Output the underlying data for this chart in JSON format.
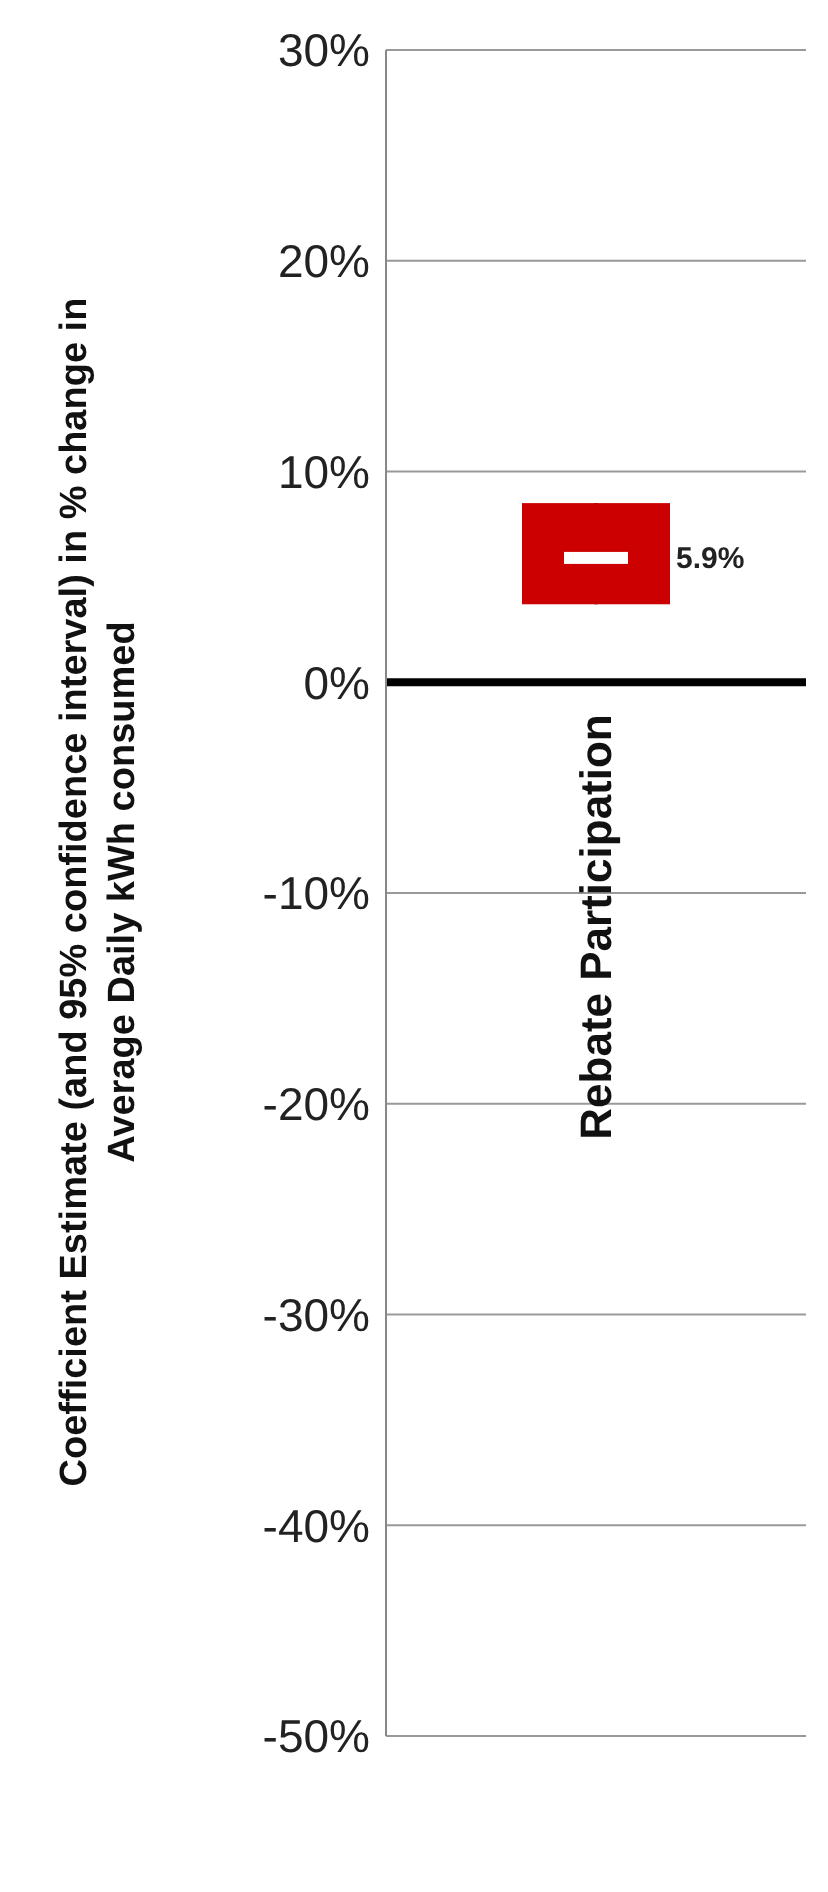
{
  "chart_data": {
    "type": "box",
    "categories": [
      "Rebate Participation"
    ],
    "boxes": [
      {
        "low": 3.7,
        "q1": 3.7,
        "median": 5.9,
        "q3": 8.5,
        "high": 8.5
      }
    ],
    "color": "#cc0000",
    "ylabel": "Coefficient Estimate (and 95% confidence interval) in % change in Average Daily kWh consumed",
    "ylim": [
      -50,
      30
    ],
    "yticks": [
      {
        "value": -50,
        "label": "-50%"
      },
      {
        "value": -40,
        "label": "-40%"
      },
      {
        "value": -30,
        "label": "-30%"
      },
      {
        "value": -20,
        "label": "-20%"
      },
      {
        "value": -10,
        "label": "-10%"
      },
      {
        "value": 0,
        "label": "0%"
      },
      {
        "value": 10,
        "label": "10%"
      },
      {
        "value": 20,
        "label": "20%"
      },
      {
        "value": 30,
        "label": "30%"
      }
    ],
    "grid": "y",
    "annotations": [
      {
        "text": "5.9%",
        "x": "Rebate Participation",
        "y": 5.9
      }
    ]
  }
}
